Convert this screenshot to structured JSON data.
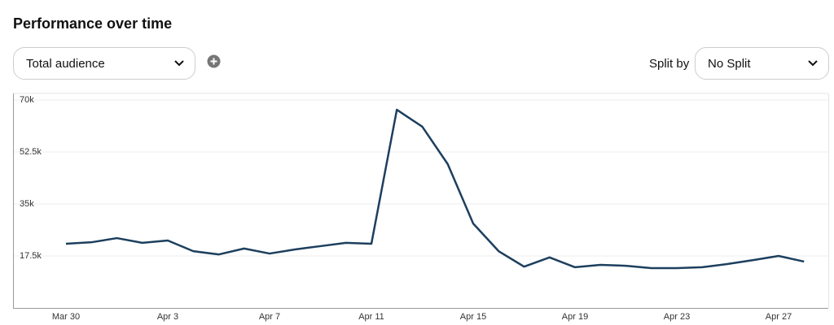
{
  "ui": {
    "title": "Performance over time",
    "metric": "Total audience",
    "split_label": "Split by",
    "split_value": "No Split"
  },
  "chart_data": {
    "type": "line",
    "categories": [
      "Mar 30",
      null,
      null,
      null,
      "Apr 3",
      null,
      null,
      null,
      "Apr 7",
      null,
      null,
      null,
      "Apr 11",
      null,
      null,
      null,
      "Apr 15",
      null,
      null,
      null,
      "Apr 19",
      null,
      null,
      null,
      "Apr 23",
      null,
      null,
      null,
      "Apr 27",
      null
    ],
    "series": [
      {
        "name": "Total audience",
        "color": "#1d3f5e",
        "values": [
          21600,
          22100,
          23500,
          21900,
          22700,
          19100,
          18000,
          20000,
          18300,
          19700,
          20800,
          21900,
          21600,
          66700,
          61000,
          48400,
          28400,
          19100,
          13900,
          17000,
          13700,
          14500,
          14200,
          13400,
          13400,
          13700,
          14800,
          16100,
          17500,
          15600
        ]
      }
    ],
    "ylim": [
      0,
      70000
    ],
    "yticks": [
      {
        "value": 17500,
        "label": "17.5k"
      },
      {
        "value": 35000,
        "label": "35k"
      },
      {
        "value": 52500,
        "label": "52.5k"
      },
      {
        "value": 70000,
        "label": "70k"
      }
    ],
    "grid": true
  }
}
